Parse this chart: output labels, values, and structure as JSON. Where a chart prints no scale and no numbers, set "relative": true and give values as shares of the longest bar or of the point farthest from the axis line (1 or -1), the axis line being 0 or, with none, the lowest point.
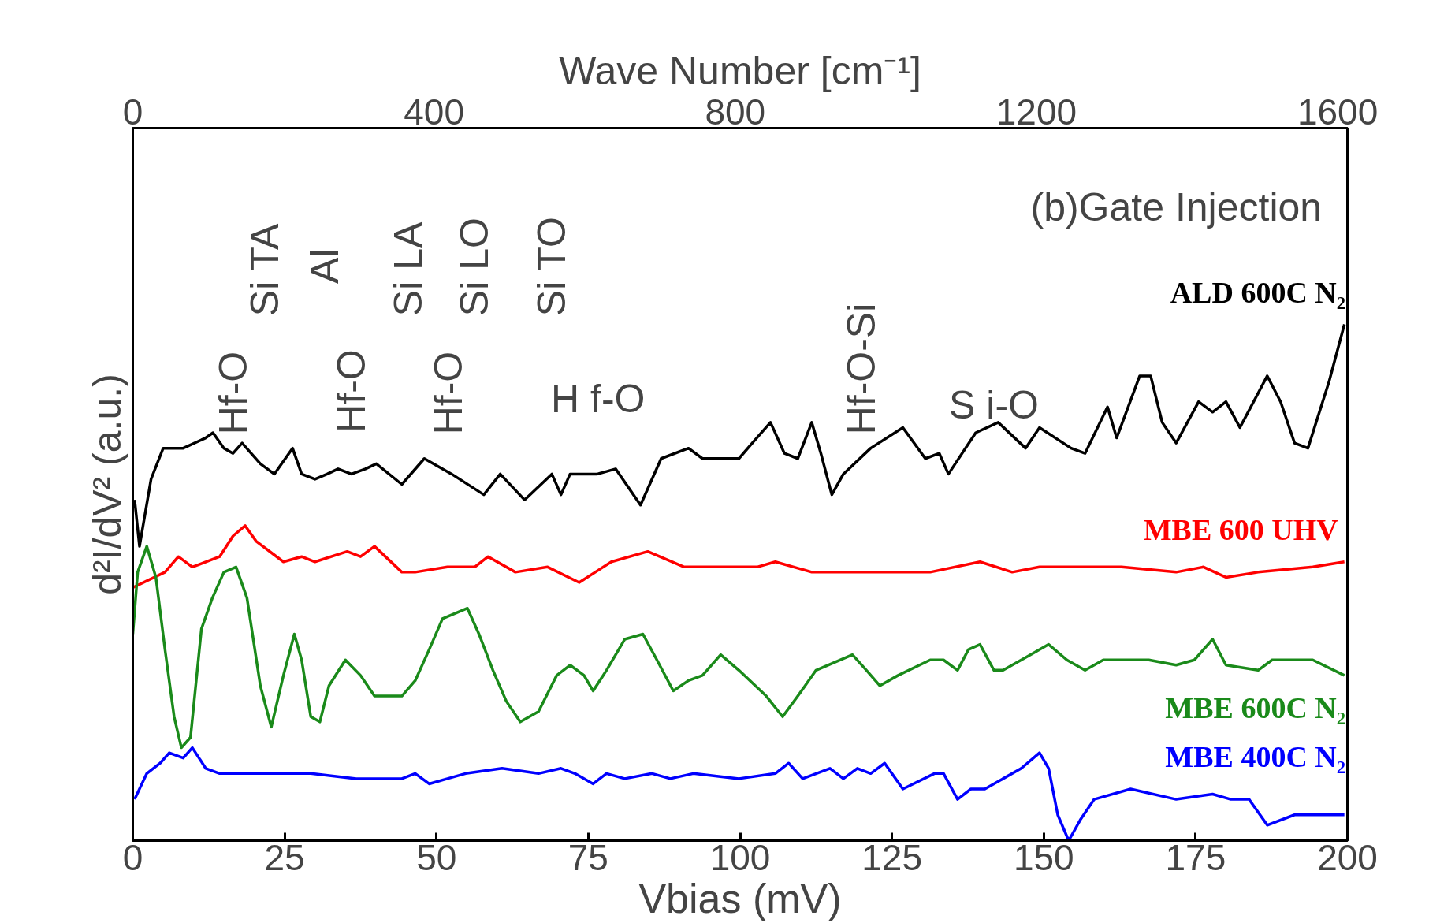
{
  "chart_data": {
    "type": "line",
    "relative": true,
    "xlabel": "Vbias (mV)",
    "ylabel": "d²I/dV² (a.u.)",
    "x2label": "Wave Number [cm⁻¹]",
    "xlim": [
      0,
      200
    ],
    "xticks": [
      0,
      25,
      50,
      75,
      100,
      125,
      150,
      175,
      200
    ],
    "x2lim": [
      0,
      1613
    ],
    "x2ticks": [
      0,
      400,
      800,
      1200,
      1600
    ],
    "tick_labels": "x",
    "grid": false,
    "legend": false,
    "marker": "none",
    "line_style": "solid",
    "series": [
      {
        "name": "ALD 600C N₂",
        "color": "#000000",
        "x": [
          0.3,
          1.1,
          3.0,
          5.0,
          8.3,
          12.0,
          13.2,
          15.0,
          16.5,
          18.0,
          21.0,
          23.3,
          26.3,
          27.8,
          30.0,
          32.0,
          33.8,
          36.0,
          38.3,
          40.1,
          44.3,
          48.0,
          52.5,
          57.8,
          60.5,
          64.5,
          69.0,
          70.5,
          72.0,
          76.5,
          79.5,
          83.6,
          87.0,
          91.5,
          93.8,
          99.8,
          102.0,
          105.0,
          107.3,
          109.5,
          111.8,
          113.3,
          115.1,
          117.0,
          121.5,
          126.8,
          130.5,
          132.8,
          134.3,
          138.8,
          142.5,
          147.0,
          149.3,
          154.5,
          156.8,
          160.5,
          162.0,
          165.8,
          167.6,
          169.5,
          171.8,
          175.5,
          177.8,
          180.0,
          182.3,
          186.8,
          189.0,
          191.3,
          193.5,
          197.0,
          199.5
        ],
        "values": [
          0.66,
          0.57,
          0.7,
          0.76,
          0.76,
          0.78,
          0.79,
          0.76,
          0.75,
          0.77,
          0.73,
          0.71,
          0.76,
          0.71,
          0.7,
          0.71,
          0.72,
          0.71,
          0.72,
          0.73,
          0.69,
          0.74,
          0.71,
          0.67,
          0.71,
          0.66,
          0.71,
          0.67,
          0.71,
          0.71,
          0.72,
          0.65,
          0.74,
          0.76,
          0.74,
          0.74,
          0.77,
          0.81,
          0.75,
          0.74,
          0.81,
          0.75,
          0.67,
          0.71,
          0.76,
          0.8,
          0.74,
          0.75,
          0.71,
          0.79,
          0.81,
          0.76,
          0.8,
          0.76,
          0.75,
          0.84,
          0.78,
          0.9,
          0.9,
          0.81,
          0.77,
          0.85,
          0.83,
          0.85,
          0.8,
          0.9,
          0.85,
          0.77,
          0.76,
          0.89,
          1.0
        ]
      },
      {
        "name": "MBE  600 UHV",
        "color": "#ff0000",
        "x": [
          0,
          5.3,
          7.5,
          9.8,
          14.3,
          16.5,
          18.5,
          20.3,
          24.8,
          27.8,
          30.0,
          35.3,
          37.5,
          39.8,
          44.3,
          46.5,
          51.8,
          56.3,
          58.5,
          63.0,
          68.3,
          73.5,
          78.8,
          84.8,
          90.8,
          96.8,
          102.8,
          105.8,
          111.8,
          114.8,
          122.3,
          131.3,
          139.5,
          144.8,
          149.3,
          158.3,
          162.8,
          171.8,
          176.3,
          180.0,
          185.3,
          194.3,
          199.5
        ],
        "values": [
          0.49,
          0.52,
          0.55,
          0.53,
          0.55,
          0.59,
          0.61,
          0.58,
          0.54,
          0.55,
          0.54,
          0.56,
          0.55,
          0.57,
          0.52,
          0.52,
          0.53,
          0.53,
          0.55,
          0.52,
          0.53,
          0.5,
          0.54,
          0.56,
          0.53,
          0.53,
          0.53,
          0.54,
          0.52,
          0.52,
          0.52,
          0.52,
          0.54,
          0.52,
          0.53,
          0.53,
          0.53,
          0.52,
          0.53,
          0.51,
          0.52,
          0.53,
          0.54
        ]
      },
      {
        "name": "MBE 600C N₂",
        "color": "#1a8a1a",
        "x": [
          0,
          0.8,
          2.3,
          3.8,
          5.3,
          6.8,
          8.0,
          9.5,
          11.3,
          13.1,
          15.0,
          17.0,
          18.8,
          21.0,
          22.8,
          24.8,
          26.6,
          27.8,
          29.3,
          30.8,
          32.3,
          35.0,
          37.5,
          39.8,
          44.3,
          46.5,
          48.8,
          51.0,
          55.1,
          57.0,
          59.3,
          61.5,
          63.8,
          66.8,
          69.8,
          72.0,
          74.3,
          75.8,
          78.0,
          81.0,
          84.0,
          86.3,
          89.0,
          91.5,
          93.8,
          96.8,
          99.8,
          104.3,
          107.0,
          109.5,
          112.5,
          118.5,
          120.8,
          123.0,
          126.0,
          131.3,
          133.5,
          135.8,
          137.6,
          139.5,
          141.8,
          143.3,
          147.8,
          150.8,
          153.8,
          156.8,
          159.8,
          167.3,
          171.8,
          174.8,
          177.8,
          180.0,
          185.3,
          187.6,
          194.3,
          199.5
        ],
        "values": [
          0.4,
          0.52,
          0.57,
          0.51,
          0.37,
          0.24,
          0.18,
          0.2,
          0.41,
          0.47,
          0.52,
          0.53,
          0.47,
          0.3,
          0.22,
          0.32,
          0.4,
          0.35,
          0.24,
          0.23,
          0.3,
          0.35,
          0.32,
          0.28,
          0.28,
          0.31,
          0.37,
          0.43,
          0.45,
          0.4,
          0.33,
          0.27,
          0.23,
          0.25,
          0.32,
          0.34,
          0.32,
          0.29,
          0.33,
          0.39,
          0.4,
          0.35,
          0.29,
          0.31,
          0.32,
          0.36,
          0.33,
          0.28,
          0.24,
          0.28,
          0.33,
          0.36,
          0.33,
          0.3,
          0.32,
          0.35,
          0.35,
          0.33,
          0.37,
          0.38,
          0.33,
          0.33,
          0.36,
          0.38,
          0.35,
          0.33,
          0.35,
          0.35,
          0.34,
          0.35,
          0.39,
          0.34,
          0.33,
          0.35,
          0.35,
          0.32
        ]
      },
      {
        "name": "MBE 400C N₂",
        "color": "#0000ff",
        "x": [
          0.3,
          2.3,
          4.5,
          6.0,
          8.3,
          9.8,
          12.0,
          14.3,
          23.3,
          29.3,
          36.8,
          44.3,
          46.5,
          48.8,
          51.8,
          54.8,
          60.8,
          66.8,
          70.5,
          72.8,
          75.8,
          78.0,
          81.0,
          85.5,
          88.5,
          92.3,
          99.8,
          105.8,
          108.0,
          110.3,
          114.8,
          117.0,
          119.3,
          121.5,
          123.8,
          126.8,
          132.0,
          133.5,
          135.8,
          138.0,
          140.3,
          146.3,
          149.3,
          150.8,
          152.3,
          154.1,
          156.0,
          158.3,
          164.3,
          171.8,
          177.8,
          180.8,
          183.8,
          186.8,
          191.3,
          199.5
        ],
        "values": [
          0.08,
          0.13,
          0.15,
          0.17,
          0.16,
          0.18,
          0.14,
          0.13,
          0.13,
          0.13,
          0.12,
          0.12,
          0.13,
          0.11,
          0.12,
          0.13,
          0.14,
          0.13,
          0.14,
          0.13,
          0.11,
          0.13,
          0.12,
          0.13,
          0.12,
          0.13,
          0.12,
          0.13,
          0.15,
          0.12,
          0.14,
          0.12,
          0.14,
          0.13,
          0.15,
          0.1,
          0.13,
          0.13,
          0.08,
          0.1,
          0.1,
          0.14,
          0.17,
          0.14,
          0.05,
          0,
          0.04,
          0.08,
          0.1,
          0.08,
          0.09,
          0.08,
          0.08,
          0.03,
          0.05,
          0.05
        ]
      }
    ],
    "annotations": [
      "(b)Gate Injection",
      "Hf-O",
      "Si TA",
      "Al",
      "Hf-O",
      "Si LA",
      "Hf-O",
      "Si LO",
      "Si TO",
      "H f-O",
      "Hf-O-Si",
      "S i-O"
    ]
  }
}
